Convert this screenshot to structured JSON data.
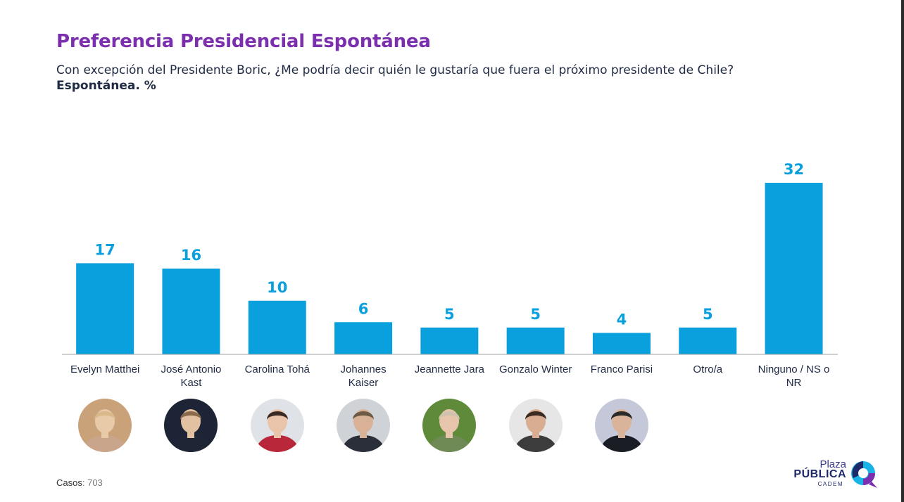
{
  "header": {
    "title": "Preferencia Presidencial Espontánea",
    "subtitle": "Con excepción del Presidente Boric, ¿Me podría decir quién le gustaría que fuera el próximo presidente de Chile?",
    "unit_label": "Espontánea. %"
  },
  "chart_data": {
    "type": "bar",
    "title": "Preferencia Presidencial Espontánea",
    "categories": [
      [
        "Evelyn Matthei"
      ],
      [
        "José Antonio",
        "Kast"
      ],
      [
        "Carolina Tohá"
      ],
      [
        "Johannes",
        "Kaiser"
      ],
      [
        "Jeannette Jara"
      ],
      [
        "Gonzalo Winter"
      ],
      [
        "Franco Parisi"
      ],
      [
        "Otro/a"
      ],
      [
        "Ninguno / NS o",
        "NR"
      ]
    ],
    "values": [
      17,
      16,
      10,
      6,
      5,
      5,
      4,
      5,
      32
    ],
    "ylim": [
      0,
      32
    ],
    "color": "#0aa0de",
    "data_labels": true,
    "grid": false
  },
  "candidate_photos": [
    {
      "name": "Evelyn Matthei",
      "icon": "portrait-photo",
      "bg": "#caa27a",
      "skin": "#e8c9a8",
      "hair": "#d9b98a",
      "cloth": "#c9a68b"
    },
    {
      "name": "José Antonio Kast",
      "icon": "portrait-photo",
      "bg": "#1c2436",
      "skin": "#e2c0a2",
      "hair": "#8a6a4a",
      "cloth": "#1e2535"
    },
    {
      "name": "Carolina Tohá",
      "icon": "portrait-photo",
      "bg": "#dfe2e6",
      "skin": "#e9c4ab",
      "hair": "#3a2a24",
      "cloth": "#b8283a"
    },
    {
      "name": "Johannes Kaiser",
      "icon": "portrait-photo",
      "bg": "#cfd3d7",
      "skin": "#d9b196",
      "hair": "#6b5a45",
      "cloth": "#2a2f3a"
    },
    {
      "name": "Jeannette Jara",
      "icon": "portrait-photo",
      "bg": "#5e8a3a",
      "skin": "#e7c5ad",
      "hair": "#cfc3ad",
      "cloth": "#6f8a55"
    },
    {
      "name": "Gonzalo Winter",
      "icon": "portrait-photo",
      "bg": "#e6e6e6",
      "skin": "#d8ad92",
      "hair": "#3a2b22",
      "cloth": "#3c3c3c"
    },
    {
      "name": "Franco Parisi",
      "icon": "portrait-photo",
      "bg": "#c5c8d8",
      "skin": "#d9b49a",
      "hair": "#2a2a2a",
      "cloth": "#1b1d24"
    }
  ],
  "footer": {
    "casos_label": "Casos",
    "casos_value": ": 703"
  },
  "logo": {
    "line1": "Plaza",
    "line2": "PÚBLICA",
    "line3": "CADEM",
    "colors": {
      "navy": "#1f2a6b",
      "purple": "#7b2fae",
      "cyan": "#19b3e6"
    }
  }
}
